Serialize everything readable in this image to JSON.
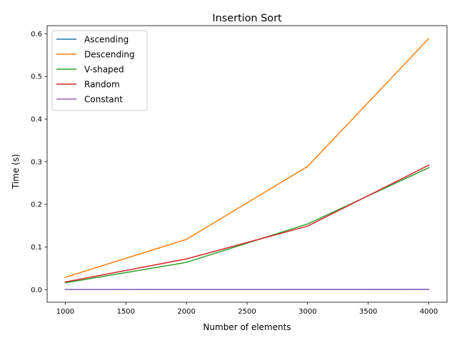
{
  "chart_data": {
    "type": "line",
    "title": "Insertion Sort",
    "xlabel": "Number of elements",
    "ylabel": "Time (s)",
    "x": [
      1000,
      2000,
      3000,
      4000
    ],
    "xlim": [
      850,
      4150
    ],
    "ylim": [
      -0.0295,
      0.619
    ],
    "xticks": [
      1000,
      1500,
      2000,
      2500,
      3000,
      3500,
      4000
    ],
    "yticks": [
      0.0,
      0.1,
      0.2,
      0.3,
      0.4,
      0.5,
      0.6
    ],
    "grid": false,
    "legend_position": "upper-left",
    "series": [
      {
        "name": "Ascending",
        "color": "#1f77b4",
        "values": [
          0.0003,
          0.0004,
          0.0005,
          0.0006
        ]
      },
      {
        "name": "Descending",
        "color": "#ff7f0e",
        "values": [
          0.029,
          0.118,
          0.289,
          0.589
        ]
      },
      {
        "name": "V-shaped",
        "color": "#2ca02c",
        "values": [
          0.016,
          0.064,
          0.154,
          0.286
        ]
      },
      {
        "name": "Random",
        "color": "#d62728",
        "values": [
          0.018,
          0.072,
          0.149,
          0.292
        ]
      },
      {
        "name": "Constant",
        "color": "#9467bd",
        "values": [
          0.0002,
          0.0003,
          0.0004,
          0.0005
        ]
      }
    ]
  }
}
